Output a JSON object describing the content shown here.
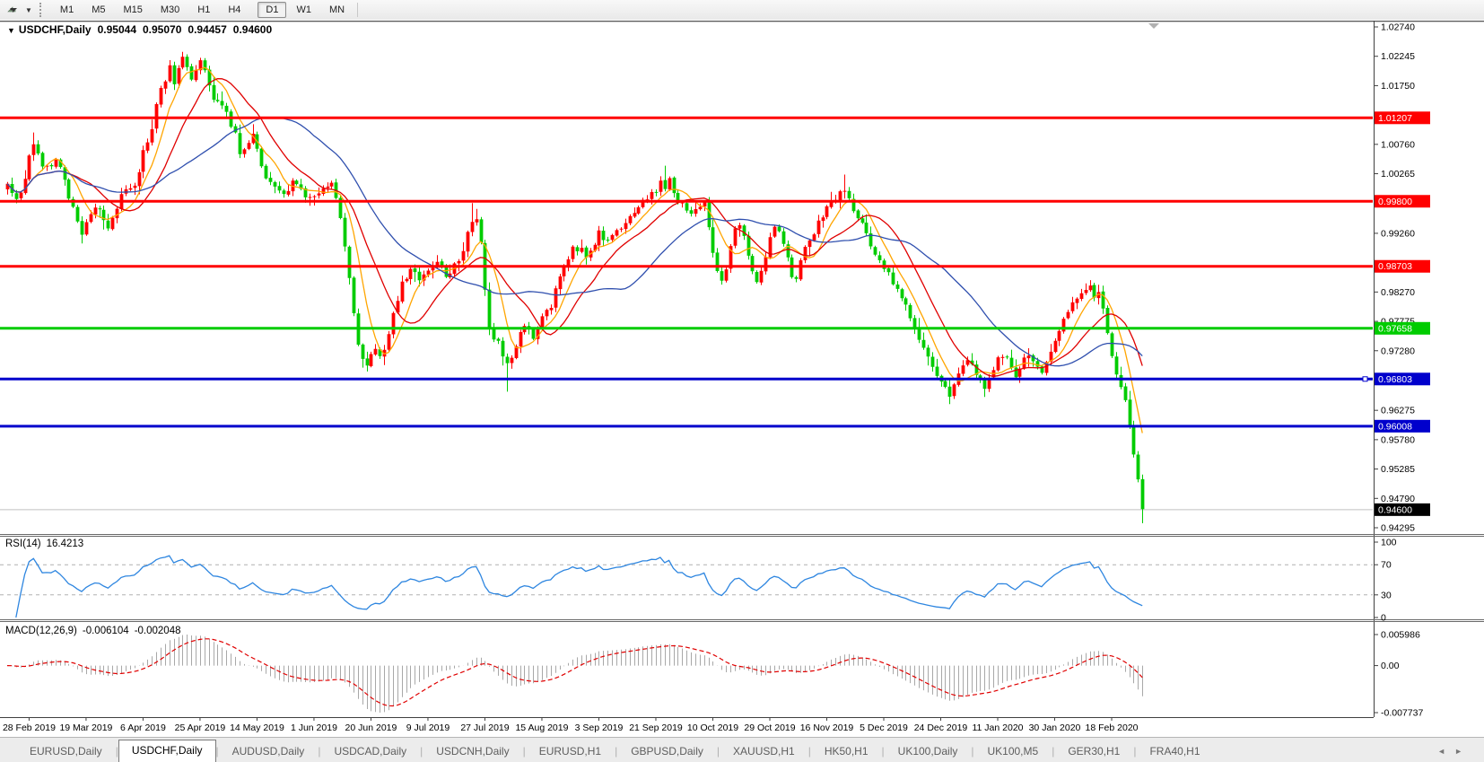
{
  "toolbar": {
    "timeframes": [
      "M1",
      "M5",
      "M15",
      "M30",
      "H1",
      "H4",
      "D1",
      "W1",
      "MN"
    ],
    "active_timeframe": "D1"
  },
  "chart": {
    "title": {
      "collapse_glyph": "▼",
      "symbol": "USDCHF,Daily",
      "open": "0.95044",
      "high": "0.95070",
      "low": "0.94457",
      "close": "0.94600"
    },
    "type": "candlestick",
    "colors": {
      "up": "#ff0000",
      "down": "#00cc00",
      "background": "#ffffff",
      "current_price_line": "#c0c0c0"
    },
    "price_axis_ticks": [
      "1.02740",
      "1.02245",
      "1.01750",
      "1.00760",
      "1.00265",
      "0.99260",
      "0.98270",
      "0.97775",
      "0.97280",
      "0.96275",
      "0.95780",
      "0.95285",
      "0.94790",
      "0.94295"
    ],
    "levels": [
      {
        "label": "1.01207",
        "price": 1.01207,
        "color": "#ff0000"
      },
      {
        "label": "0.99800",
        "price": 0.998,
        "color": "#ff0000"
      },
      {
        "label": "0.98703",
        "price": 0.98703,
        "color": "#ff0000"
      },
      {
        "label": "0.97658",
        "price": 0.97658,
        "color": "#00cc00"
      },
      {
        "label": "0.96803",
        "price": 0.96803,
        "color": "#0000cc",
        "selected": true
      },
      {
        "label": "0.96008",
        "price": 0.96008,
        "color": "#0000cc"
      }
    ],
    "current_price": {
      "label": "0.94600",
      "price": 0.946
    },
    "moving_averages": [
      {
        "name": "fast",
        "period": 7,
        "color": "#ffa500"
      },
      {
        "name": "medium",
        "period": 15,
        "color": "#e00000"
      },
      {
        "name": "slow",
        "period": 33,
        "color": "#2f4fae"
      }
    ],
    "candle_count": 260,
    "close_anchors": [
      [
        0,
        1.0005
      ],
      [
        2,
        0.9982
      ],
      [
        4,
        1.0015
      ],
      [
        5,
        1.006
      ],
      [
        6,
        1.0082
      ],
      [
        8,
        1.0041
      ],
      [
        10,
        1.0036
      ],
      [
        11,
        1.0056
      ],
      [
        13,
        1.0018
      ],
      [
        14,
        0.999
      ],
      [
        16,
        0.9942
      ],
      [
        17,
        0.9928
      ],
      [
        19,
        0.9958
      ],
      [
        20,
        0.9973
      ],
      [
        22,
        0.9951
      ],
      [
        23,
        0.994
      ],
      [
        25,
        0.997
      ],
      [
        26,
        0.9993
      ],
      [
        28,
        0.9999
      ],
      [
        29,
        1.0006
      ],
      [
        31,
        1.0062
      ],
      [
        33,
        1.0098
      ],
      [
        34,
        1.0143
      ],
      [
        36,
        1.0188
      ],
      [
        37,
        1.0211
      ],
      [
        38,
        1.0181
      ],
      [
        39,
        1.0202
      ],
      [
        40,
        1.0224
      ],
      [
        41,
        1.0207
      ],
      [
        42,
        1.019
      ],
      [
        43,
        1.02
      ],
      [
        44,
        1.0214
      ],
      [
        45,
        1.0196
      ],
      [
        47,
        1.0152
      ],
      [
        49,
        1.014
      ],
      [
        50,
        1.0126
      ],
      [
        52,
        1.0092
      ],
      [
        53,
        1.0064
      ],
      [
        55,
        1.0075
      ],
      [
        56,
        1.0089
      ],
      [
        58,
        1.0045
      ],
      [
        59,
        1.0023
      ],
      [
        61,
        1.0005
      ],
      [
        62,
        0.9993
      ],
      [
        64,
        1.0002
      ],
      [
        65,
        1.0011
      ],
      [
        67,
        0.9995
      ],
      [
        68,
        0.9986
      ],
      [
        70,
        0.9994
      ],
      [
        71,
        0.9991
      ],
      [
        73,
        1.0004
      ],
      [
        74,
        1.0008
      ],
      [
        75,
        0.9985
      ],
      [
        76,
        0.995
      ],
      [
        77,
        0.9905
      ],
      [
        78,
        0.9852
      ],
      [
        79,
        0.9796
      ],
      [
        80,
        0.9742
      ],
      [
        81,
        0.9718
      ],
      [
        82,
        0.9707
      ],
      [
        83,
        0.9722
      ],
      [
        84,
        0.9731
      ],
      [
        85,
        0.9719
      ],
      [
        86,
        0.9724
      ],
      [
        87,
        0.9752
      ],
      [
        88,
        0.9791
      ],
      [
        89,
        0.9818
      ],
      [
        90,
        0.9841
      ],
      [
        92,
        0.9869
      ],
      [
        94,
        0.9846
      ],
      [
        96,
        0.9866
      ],
      [
        98,
        0.9881
      ],
      [
        100,
        0.9853
      ],
      [
        102,
        0.9871
      ],
      [
        104,
        0.9892
      ],
      [
        105,
        0.9926
      ],
      [
        106,
        0.9949
      ],
      [
        107,
        0.9953
      ],
      [
        108,
        0.9906
      ],
      [
        109,
        0.9831
      ],
      [
        110,
        0.9762
      ],
      [
        111,
        0.9745
      ],
      [
        112,
        0.975
      ],
      [
        113,
        0.9722
      ],
      [
        114,
        0.9703
      ],
      [
        115,
        0.9721
      ],
      [
        116,
        0.9739
      ],
      [
        117,
        0.9755
      ],
      [
        118,
        0.9771
      ],
      [
        119,
        0.976
      ],
      [
        120,
        0.9746
      ],
      [
        121,
        0.9762
      ],
      [
        122,
        0.9781
      ],
      [
        124,
        0.9802
      ],
      [
        126,
        0.9856
      ],
      [
        128,
        0.9884
      ],
      [
        129,
        0.9906
      ],
      [
        131,
        0.9896
      ],
      [
        132,
        0.9881
      ],
      [
        134,
        0.9912
      ],
      [
        135,
        0.9931
      ],
      [
        136,
        0.992
      ],
      [
        138,
        0.9918
      ],
      [
        140,
        0.9935
      ],
      [
        142,
        0.9958
      ],
      [
        144,
        0.9972
      ],
      [
        146,
        0.9988
      ],
      [
        148,
        1.0
      ],
      [
        149,
        1.0012
      ],
      [
        150,
        0.9998
      ],
      [
        151,
        1.0015
      ],
      [
        152,
        0.999
      ],
      [
        154,
        0.9972
      ],
      [
        156,
        0.9956
      ],
      [
        158,
        0.9975
      ],
      [
        159,
        0.9978
      ],
      [
        160,
        0.994
      ],
      [
        161,
        0.989
      ],
      [
        162,
        0.9862
      ],
      [
        163,
        0.9845
      ],
      [
        164,
        0.987
      ],
      [
        165,
        0.9902
      ],
      [
        166,
        0.993
      ],
      [
        167,
        0.9938
      ],
      [
        168,
        0.9916
      ],
      [
        169,
        0.9886
      ],
      [
        170,
        0.986
      ],
      [
        171,
        0.9841
      ],
      [
        172,
        0.9862
      ],
      [
        173,
        0.989
      ],
      [
        174,
        0.9915
      ],
      [
        175,
        0.9933
      ],
      [
        176,
        0.9935
      ],
      [
        177,
        0.9912
      ],
      [
        178,
        0.988
      ],
      [
        179,
        0.9857
      ],
      [
        180,
        0.9852
      ],
      [
        181,
        0.9875
      ],
      [
        182,
        0.99
      ],
      [
        183,
        0.992
      ],
      [
        184,
        0.993
      ],
      [
        185,
        0.9945
      ],
      [
        186,
        0.9958
      ],
      [
        187,
        0.9968
      ],
      [
        188,
        0.9975
      ],
      [
        189,
        0.9988
      ],
      [
        190,
        0.9998
      ],
      [
        191,
        1.0003
      ],
      [
        192,
        0.9985
      ],
      [
        193,
        0.9968
      ],
      [
        194,
        0.9955
      ],
      [
        195,
        0.9938
      ],
      [
        196,
        0.9925
      ],
      [
        197,
        0.9905
      ],
      [
        198,
        0.9888
      ],
      [
        199,
        0.9878
      ],
      [
        200,
        0.9868
      ],
      [
        201,
        0.9855
      ],
      [
        202,
        0.9842
      ],
      [
        203,
        0.983
      ],
      [
        204,
        0.982
      ],
      [
        205,
        0.9806
      ],
      [
        206,
        0.9785
      ],
      [
        207,
        0.976
      ],
      [
        208,
        0.9745
      ],
      [
        209,
        0.973
      ],
      [
        210,
        0.9718
      ],
      [
        211,
        0.9702
      ],
      [
        212,
        0.969
      ],
      [
        213,
        0.9678
      ],
      [
        214,
        0.9668
      ],
      [
        215,
        0.9655
      ],
      [
        216,
        0.9668
      ],
      [
        217,
        0.9685
      ],
      [
        218,
        0.9702
      ],
      [
        219,
        0.9715
      ],
      [
        220,
        0.9705
      ],
      [
        221,
        0.9692
      ],
      [
        222,
        0.9678
      ],
      [
        223,
        0.9665
      ],
      [
        224,
        0.968
      ],
      [
        225,
        0.97
      ],
      [
        226,
        0.9715
      ],
      [
        227,
        0.9722
      ],
      [
        228,
        0.9712
      ],
      [
        229,
        0.97
      ],
      [
        230,
        0.9688
      ],
      [
        231,
        0.9702
      ],
      [
        232,
        0.9712
      ],
      [
        233,
        0.9722
      ],
      [
        234,
        0.9716
      ],
      [
        235,
        0.9705
      ],
      [
        236,
        0.9695
      ],
      [
        237,
        0.9705
      ],
      [
        238,
        0.9725
      ],
      [
        239,
        0.9745
      ],
      [
        240,
        0.9762
      ],
      [
        241,
        0.978
      ],
      [
        242,
        0.9796
      ],
      [
        243,
        0.9808
      ],
      [
        244,
        0.9818
      ],
      [
        245,
        0.9828
      ],
      [
        246,
        0.983
      ],
      [
        247,
        0.9838
      ],
      [
        248,
        0.982
      ],
      [
        249,
        0.9826
      ],
      [
        250,
        0.9798
      ],
      [
        251,
        0.9758
      ],
      [
        252,
        0.972
      ],
      [
        253,
        0.9688
      ],
      [
        254,
        0.9666
      ],
      [
        255,
        0.9645
      ],
      [
        256,
        0.96
      ],
      [
        257,
        0.9552
      ],
      [
        258,
        0.9512
      ],
      [
        259,
        0.946
      ]
    ],
    "wick_extremes": {
      "6": {
        "high": 1.0096
      },
      "17": {
        "low": 0.9909
      },
      "40": {
        "high": 1.0232
      },
      "44": {
        "high": 1.0222
      },
      "82": {
        "low": 0.9693
      },
      "106": {
        "high": 0.9977
      },
      "114": {
        "low": 0.9659
      },
      "150": {
        "high": 1.004
      },
      "191": {
        "high": 1.0025
      },
      "215": {
        "low": 0.9641
      },
      "223": {
        "low": 0.965
      },
      "247": {
        "high": 0.9847
      },
      "259": {
        "low": 0.9437
      }
    },
    "shift_marker": true
  },
  "rsi": {
    "label": "RSI(14)",
    "value": "16.4213",
    "period": 14,
    "axis_labels": [
      "100",
      "70",
      "30",
      "0"
    ],
    "upper_level": 70,
    "lower_level": 30,
    "line_color": "#2e86e0"
  },
  "macd": {
    "label": "MACD(12,26,9)",
    "value_main": "-0.006104",
    "value_signal": "-0.002048",
    "fast": 12,
    "slow": 26,
    "signal": 9,
    "axis_max_label": "0.005986",
    "axis_zero_label": "0.00",
    "axis_min_label": "-0.007737",
    "hist_color": "#a8a8a8",
    "signal_color": "#e00000"
  },
  "date_axis": {
    "labels": [
      "28 Feb 2019",
      "19 Mar 2019",
      "6 Apr 2019",
      "25 Apr 2019",
      "14 May 2019",
      "1 Jun 2019",
      "20 Jun 2019",
      "9 Jul 2019",
      "27 Jul 2019",
      "15 Aug 2019",
      "3 Sep 2019",
      "21 Sep 2019",
      "10 Oct 2019",
      "29 Oct 2019",
      "16 Nov 2019",
      "5 Dec 2019",
      "24 Dec 2019",
      "11 Jan 2020",
      "30 Jan 2020",
      "18 Feb 2020"
    ]
  },
  "tabs": {
    "items": [
      "EURUSD,Daily",
      "USDCHF,Daily",
      "AUDUSD,Daily",
      "USDCAD,Daily",
      "USDCNH,Daily",
      "EURUSD,H1",
      "GBPUSD,Daily",
      "XAUUSD,H1",
      "HK50,H1",
      "UK100,Daily",
      "UK100,M5",
      "GER30,H1",
      "FRA40,H1"
    ],
    "active": "USDCHF,Daily",
    "scroll_left_glyph": "◄",
    "scroll_right_glyph": "►"
  }
}
